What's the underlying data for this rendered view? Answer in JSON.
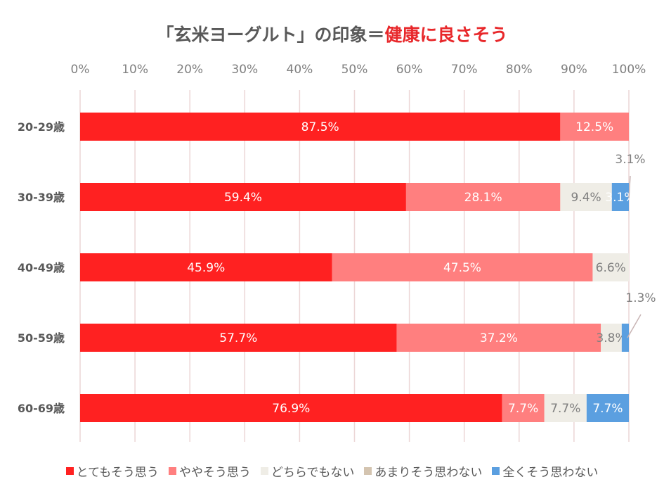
{
  "chart_data": {
    "type": "bar",
    "orientation": "horizontal",
    "stacked": "percent",
    "title": "「玄米ヨーグルト」の印象＝健康に良さそう",
    "title_parts": [
      "「玄米ヨーグルト」の印象＝",
      "健康に良さそう"
    ],
    "categories": [
      "20-29歳",
      "30-39歳",
      "40-49歳",
      "50-59歳",
      "60-69歳"
    ],
    "xlim": [
      0,
      100
    ],
    "x_ticks": [
      "0%",
      "10%",
      "20%",
      "30%",
      "40%",
      "50%",
      "60%",
      "70%",
      "80%",
      "90%",
      "100%"
    ],
    "series": [
      {
        "name": "とてもそう思う",
        "color": "#ff2121",
        "values": [
          87.5,
          59.4,
          45.9,
          57.7,
          76.9
        ],
        "labels": [
          "87.5%",
          "59.4%",
          "45.9%",
          "57.7%",
          "76.9%"
        ]
      },
      {
        "name": "ややそう思う",
        "color": "#ff7f7f",
        "values": [
          12.5,
          28.1,
          47.5,
          37.2,
          7.7
        ],
        "labels": [
          "12.5%",
          "28.1%",
          "47.5%",
          "37.2%",
          "7.7%"
        ]
      },
      {
        "name": "どちらでもない",
        "color": "#efede6",
        "values": [
          0,
          9.4,
          6.6,
          3.8,
          7.7
        ],
        "labels": [
          "",
          "9.4%",
          "6.6%",
          "3.8%",
          "7.7%"
        ]
      },
      {
        "name": "あまりそう思わない",
        "color": "#d4c4b0",
        "values": [
          0,
          0,
          0,
          0,
          0
        ],
        "labels": [
          "",
          "",
          "",
          "",
          ""
        ]
      },
      {
        "name": "全くそう思わない",
        "color": "#5b9fe0",
        "values": [
          0,
          3.1,
          0,
          1.3,
          7.7
        ],
        "labels": [
          "",
          "3.1%",
          "",
          "1.3%",
          "7.7%"
        ]
      }
    ],
    "gridlines": true,
    "legend_position": "bottom"
  }
}
